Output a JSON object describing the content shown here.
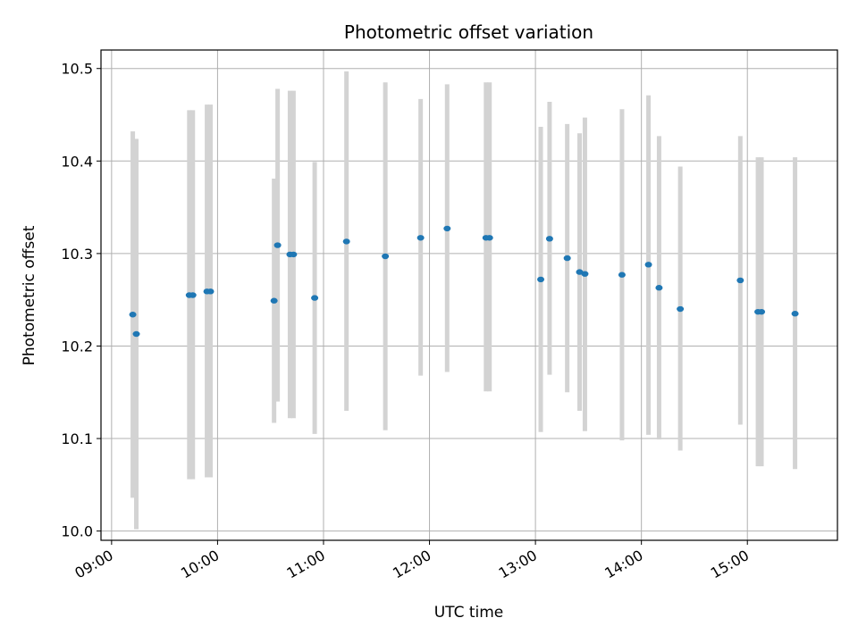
{
  "chart_data": {
    "type": "scatter",
    "title": "Photometric offset variation",
    "xlabel": "UTC time",
    "ylabel": "Photometric offset",
    "xlim": [
      "08:54",
      "15:51"
    ],
    "ylim": [
      9.99,
      10.52
    ],
    "x_ticks": [
      "09:00",
      "10:00",
      "11:00",
      "12:00",
      "13:00",
      "14:00",
      "15:00"
    ],
    "y_ticks": [
      "10.0",
      "10.1",
      "10.2",
      "10.3",
      "10.4",
      "10.5"
    ],
    "grid": true,
    "colors": {
      "points": "#1f77b4",
      "error_bars": "#d3d3d3",
      "grid": "#b0b0b0"
    },
    "points": [
      {
        "x": "09:12",
        "y": 10.234,
        "ylow": 10.036,
        "yhigh": 10.432
      },
      {
        "x": "09:14",
        "y": 10.213,
        "ylow": 10.002,
        "yhigh": 10.424
      },
      {
        "x": "09:44",
        "y": 10.255,
        "ylow": 10.056,
        "yhigh": 10.455
      },
      {
        "x": "09:46",
        "y": 10.255,
        "ylow": 10.056,
        "yhigh": 10.455
      },
      {
        "x": "09:54",
        "y": 10.259,
        "ylow": 10.058,
        "yhigh": 10.461
      },
      {
        "x": "09:56",
        "y": 10.259,
        "ylow": 10.058,
        "yhigh": 10.461
      },
      {
        "x": "10:32",
        "y": 10.249,
        "ylow": 10.117,
        "yhigh": 10.381
      },
      {
        "x": "10:34",
        "y": 10.309,
        "ylow": 10.14,
        "yhigh": 10.478
      },
      {
        "x": "10:41",
        "y": 10.299,
        "ylow": 10.122,
        "yhigh": 10.476
      },
      {
        "x": "10:43",
        "y": 10.299,
        "ylow": 10.122,
        "yhigh": 10.476
      },
      {
        "x": "10:55",
        "y": 10.252,
        "ylow": 10.105,
        "yhigh": 10.399
      },
      {
        "x": "11:13",
        "y": 10.313,
        "ylow": 10.13,
        "yhigh": 10.497
      },
      {
        "x": "11:35",
        "y": 10.297,
        "ylow": 10.109,
        "yhigh": 10.485
      },
      {
        "x": "11:55",
        "y": 10.317,
        "ylow": 10.168,
        "yhigh": 10.467
      },
      {
        "x": "12:10",
        "y": 10.327,
        "ylow": 10.172,
        "yhigh": 10.483
      },
      {
        "x": "12:32",
        "y": 10.317,
        "ylow": 10.151,
        "yhigh": 10.485
      },
      {
        "x": "12:34",
        "y": 10.317,
        "ylow": 10.151,
        "yhigh": 10.485
      },
      {
        "x": "13:03",
        "y": 10.272,
        "ylow": 10.107,
        "yhigh": 10.437
      },
      {
        "x": "13:08",
        "y": 10.316,
        "ylow": 10.169,
        "yhigh": 10.464
      },
      {
        "x": "13:18",
        "y": 10.295,
        "ylow": 10.15,
        "yhigh": 10.44
      },
      {
        "x": "13:25",
        "y": 10.28,
        "ylow": 10.13,
        "yhigh": 10.43
      },
      {
        "x": "13:28",
        "y": 10.278,
        "ylow": 10.108,
        "yhigh": 10.447
      },
      {
        "x": "13:49",
        "y": 10.277,
        "ylow": 10.098,
        "yhigh": 10.456
      },
      {
        "x": "14:04",
        "y": 10.288,
        "ylow": 10.104,
        "yhigh": 10.471
      },
      {
        "x": "14:10",
        "y": 10.263,
        "ylow": 10.099,
        "yhigh": 10.427
      },
      {
        "x": "14:22",
        "y": 10.24,
        "ylow": 10.087,
        "yhigh": 10.394
      },
      {
        "x": "14:56",
        "y": 10.271,
        "ylow": 10.115,
        "yhigh": 10.427
      },
      {
        "x": "15:06",
        "y": 10.237,
        "ylow": 10.07,
        "yhigh": 10.404
      },
      {
        "x": "15:08",
        "y": 10.237,
        "ylow": 10.07,
        "yhigh": 10.404
      },
      {
        "x": "15:27",
        "y": 10.235,
        "ylow": 10.067,
        "yhigh": 10.404
      }
    ]
  }
}
